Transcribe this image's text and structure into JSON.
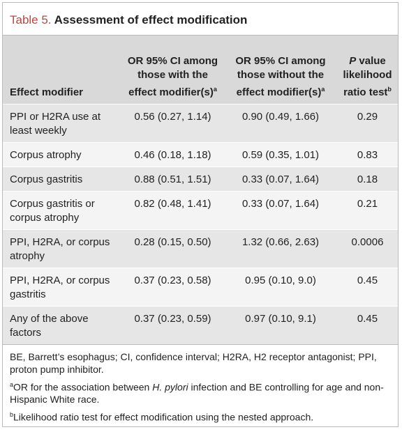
{
  "title": {
    "label": "Table 5.",
    "text": "Assessment of effect modification"
  },
  "table": {
    "header": {
      "c0": "Effect modifier",
      "c1": {
        "text": "OR 95% CI among those with the effect modifier(s)",
        "sup": "a"
      },
      "c2": {
        "text": "OR 95% CI among those without the effect modifier(s)",
        "sup": "a"
      },
      "c3": {
        "italic": "P",
        "text": "value likelihood ratio test",
        "sup": "b"
      }
    },
    "rows": [
      [
        "PPI or H2RA use at least weekly",
        "0.56 (0.27, 1.14)",
        "0.90 (0.49, 1.66)",
        "0.29"
      ],
      [
        "Corpus atrophy",
        "0.46 (0.18, 1.18)",
        "0.59 (0.35, 1.01)",
        "0.83"
      ],
      [
        "Corpus gastritis",
        "0.88 (0.51, 1.51)",
        "0.33 (0.07, 1.64)",
        "0.18"
      ],
      [
        "Corpus gastritis or corpus atrophy",
        "0.82 (0.48, 1.41)",
        "0.33 (0.07, 1.64)",
        "0.21"
      ],
      [
        "PPI, H2RA, or corpus atrophy",
        "0.28 (0.15, 0.50)",
        "1.32 (0.66, 2.63)",
        "0.0006"
      ],
      [
        "PPI, H2RA, or corpus gastritis",
        "0.37 (0.23, 0.58)",
        "0.95 (0.10, 9.0)",
        "0.45"
      ],
      [
        "Any of the above factors",
        "0.37 (0.23, 0.59)",
        "0.97 (0.10, 9.1)",
        "0.45"
      ]
    ]
  },
  "footnotes": {
    "abbrev": "BE, Barrett’s esophagus; CI, confidence interval; H2RA, H2 receptor antagonist; PPI, proton pump inhibitor.",
    "a": {
      "mark": "a",
      "before": "OR for the association between",
      "italic": "H. pylori",
      "after": "infection and BE controlling for age and non-Hispanic White race."
    },
    "b": {
      "mark": "b",
      "text": "Likelihood ratio test for effect modification using the nested approach."
    }
  }
}
